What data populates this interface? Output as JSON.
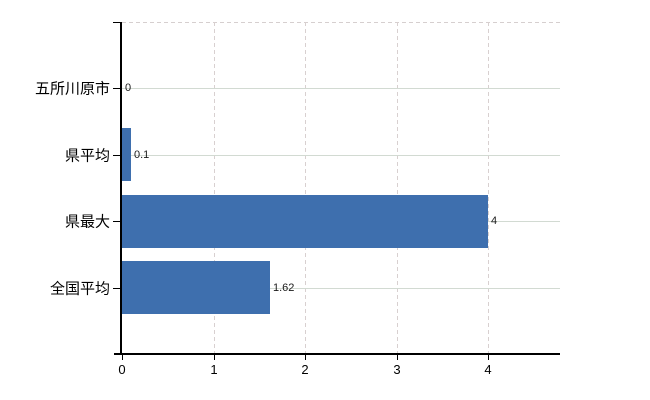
{
  "chart_data": {
    "type": "bar",
    "orientation": "horizontal",
    "categories": [
      "五所川原市",
      "県平均",
      "県最大",
      "全国平均"
    ],
    "values": [
      0,
      0.1,
      4,
      1.62
    ],
    "data_labels": [
      "0",
      "0.1",
      "4",
      "1.62"
    ],
    "x_ticks": [
      "0",
      "1",
      "2",
      "3",
      "4"
    ],
    "x_tick_values": [
      0,
      1,
      2,
      3,
      4
    ],
    "xlim": [
      0,
      4.8
    ],
    "grid": true,
    "legend": false,
    "title": "",
    "colors": {
      "bar": "#3e6fae",
      "axis": "#000000",
      "gridline_h": "#d2dad2",
      "gridline_v": "#d8d0d0",
      "tick_text": "#000000",
      "data_label_text": "#1a1a1a",
      "background": "#ffffff"
    }
  }
}
